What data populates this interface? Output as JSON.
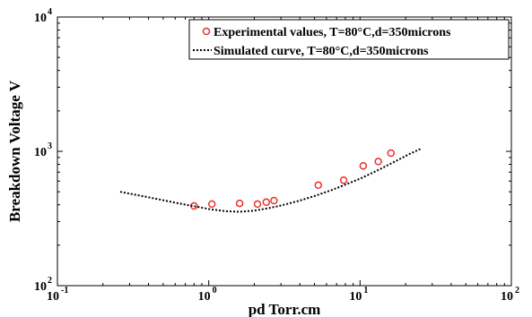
{
  "chart_data": {
    "type": "scatter",
    "xlabel": "pd Torr.cm",
    "ylabel": "Breakdown Voltage V",
    "x_scale": "log",
    "y_scale": "log",
    "xlim": [
      0.1,
      100
    ],
    "ylim": [
      100,
      10000
    ],
    "grid": false,
    "legend_position": "top-right",
    "x_ticks": [
      {
        "base": "10",
        "exp": "-1",
        "value": 0.1
      },
      {
        "base": "10",
        "exp": "0",
        "value": 1
      },
      {
        "base": "10",
        "exp": "1",
        "value": 10
      },
      {
        "base": "10",
        "exp": "2",
        "value": 100
      }
    ],
    "y_ticks": [
      {
        "base": "10",
        "exp": "2",
        "value": 100
      },
      {
        "base": "10",
        "exp": "3",
        "value": 1000
      },
      {
        "base": "10",
        "exp": "4",
        "value": 10000
      }
    ],
    "series": [
      {
        "name": "Experimental values, T=80°C,d=350microns",
        "kind": "markers",
        "marker": "open-circle",
        "color": "#e8302a",
        "points": [
          [
            0.8,
            392
          ],
          [
            1.05,
            405
          ],
          [
            1.6,
            410
          ],
          [
            2.1,
            405
          ],
          [
            2.4,
            418
          ],
          [
            2.7,
            430
          ],
          [
            5.3,
            560
          ],
          [
            7.8,
            610
          ],
          [
            10.5,
            780
          ],
          [
            13.2,
            840
          ],
          [
            16,
            970
          ]
        ]
      },
      {
        "name": "Simulated curve, T=80°C,d=350microns",
        "kind": "line",
        "style": "dotted",
        "color": "#000000",
        "points": [
          [
            0.26,
            500
          ],
          [
            0.4,
            455
          ],
          [
            0.6,
            415
          ],
          [
            0.8,
            390
          ],
          [
            1.0,
            372
          ],
          [
            1.3,
            358
          ],
          [
            1.6,
            355
          ],
          [
            2.0,
            362
          ],
          [
            2.5,
            378
          ],
          [
            3.0,
            395
          ],
          [
            4.0,
            430
          ],
          [
            5.0,
            465
          ],
          [
            6.5,
            515
          ],
          [
            8.0,
            565
          ],
          [
            10.0,
            625
          ],
          [
            13.0,
            720
          ],
          [
            17.0,
            840
          ],
          [
            21.0,
            950
          ],
          [
            25.0,
            1040
          ]
        ]
      }
    ]
  }
}
